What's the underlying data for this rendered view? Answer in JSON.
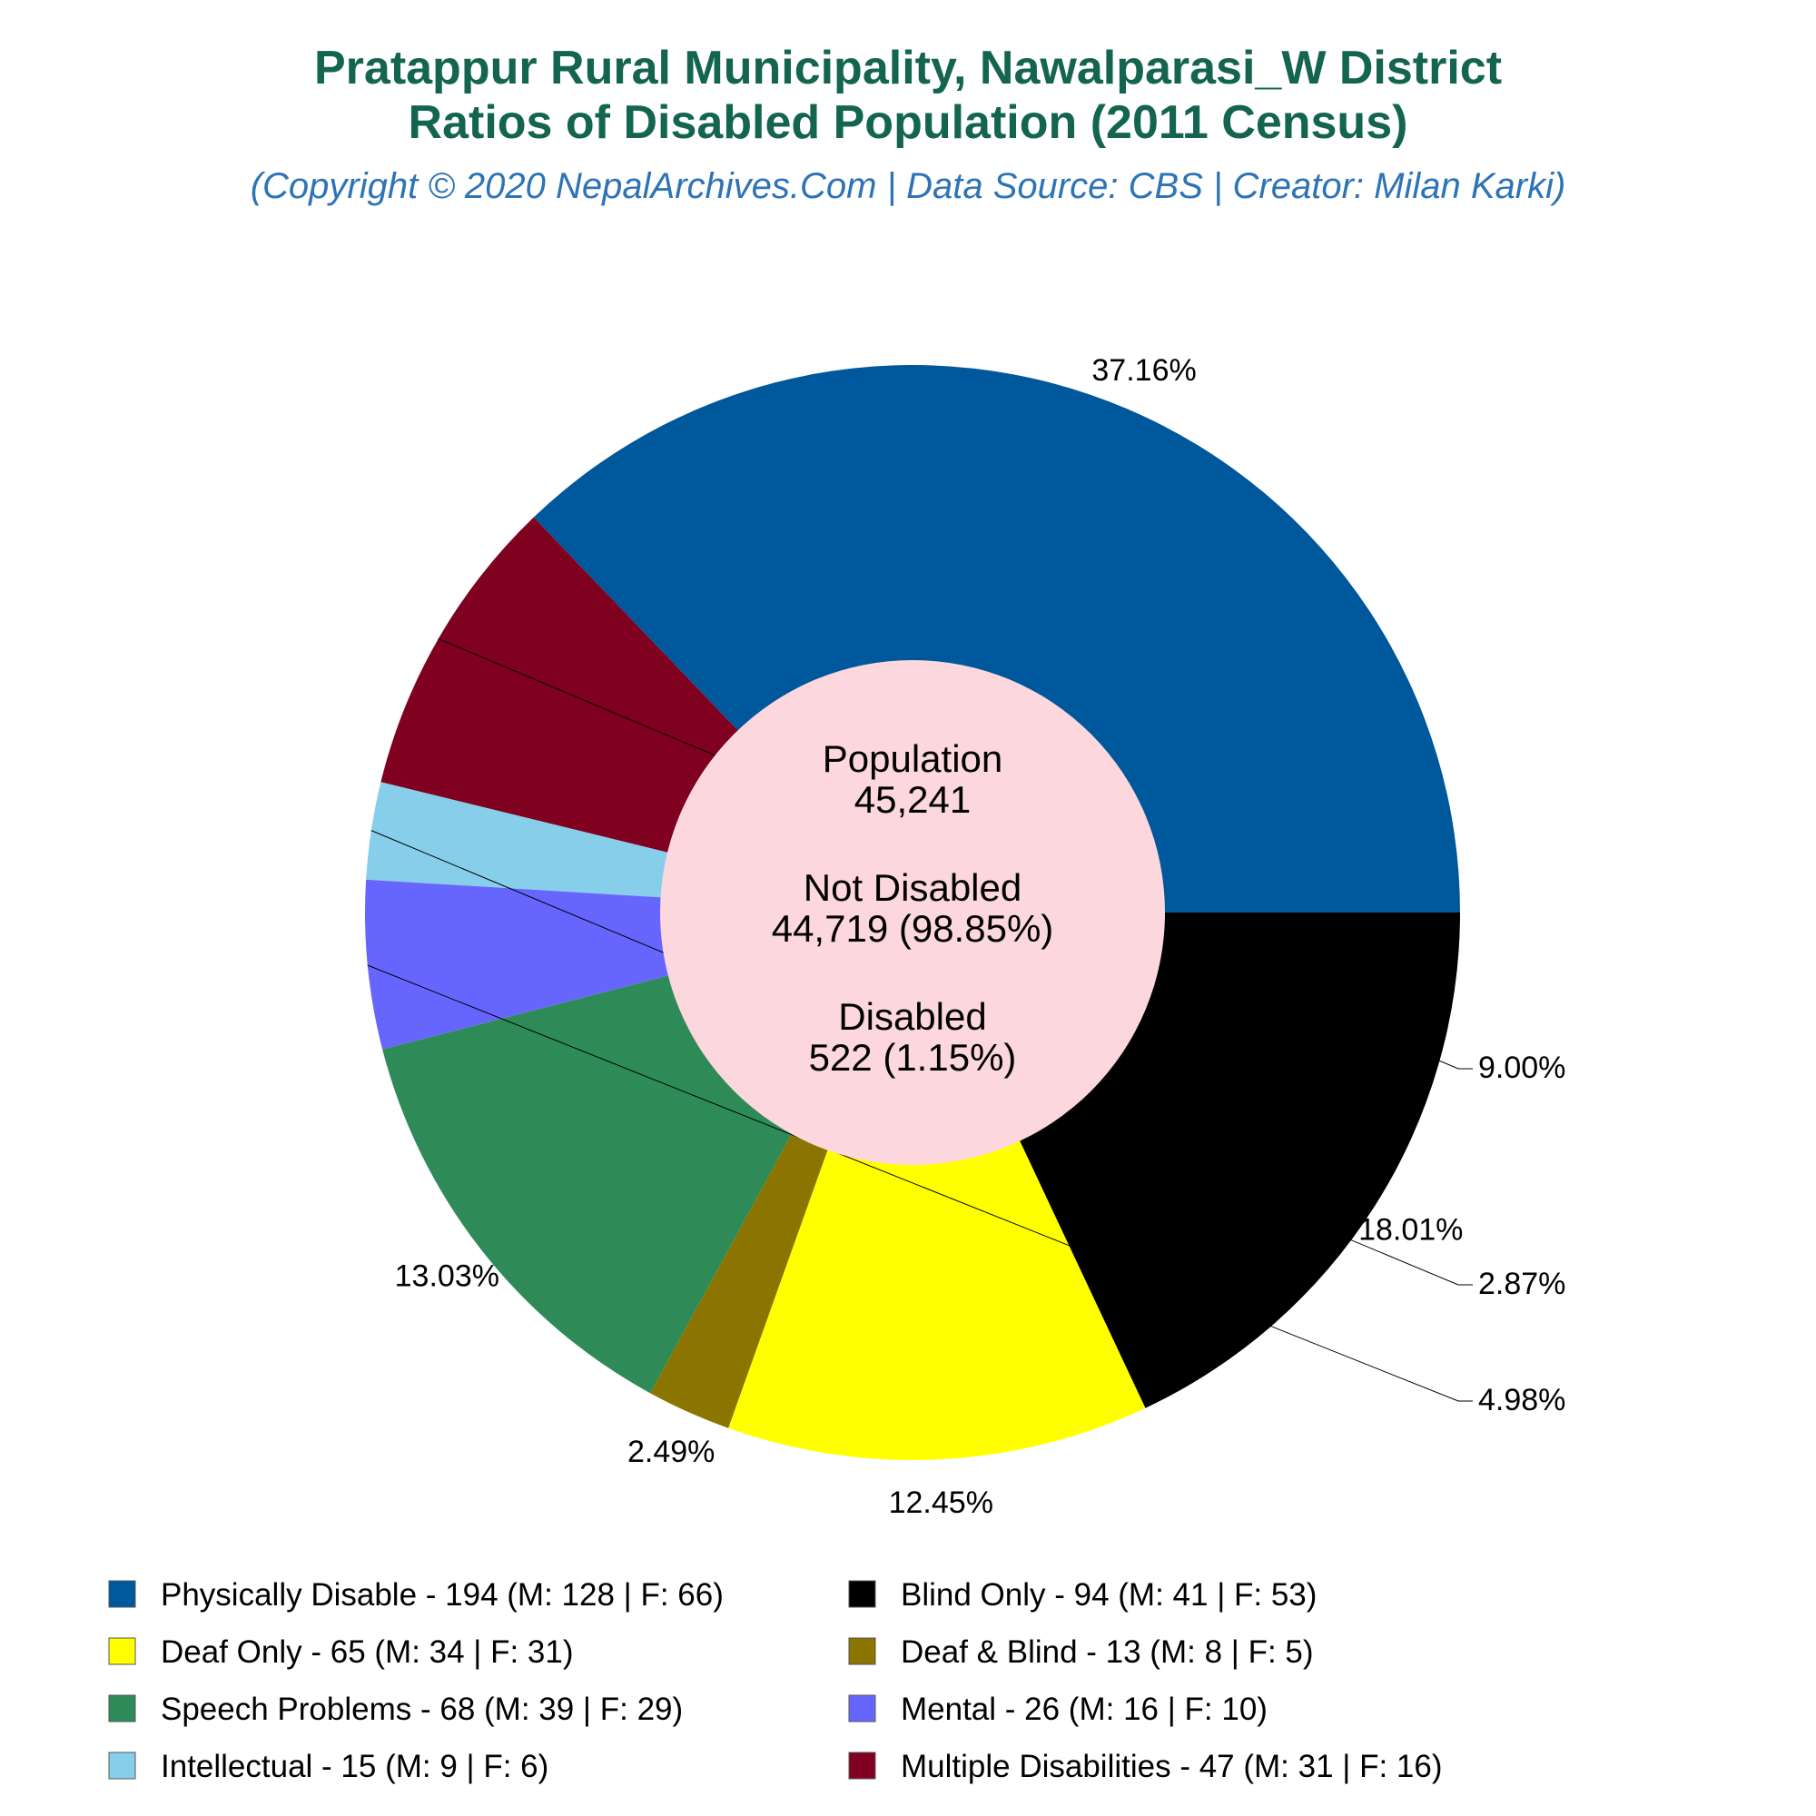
{
  "chart_data": {
    "type": "pie",
    "title_line1": "Pratappur Rural Municipality, Nawalparasi_W District",
    "title_line2": "Ratios of Disabled Population (2011 Census)",
    "subtitle": "(Copyright © 2020 NepalArchives.Com | Data Source: CBS | Creator: Milan Karki)",
    "center": {
      "population_label": "Population",
      "population_value": "45,241",
      "not_disabled_label": "Not Disabled",
      "not_disabled_value": "44,719 (98.85%)",
      "disabled_label": "Disabled",
      "disabled_value": "522 (1.15%)"
    },
    "slices": [
      {
        "category": "Physically Disable",
        "value": 194,
        "percent_label": "37.16%",
        "legend": "Physically Disable - 194 (M: 128 | F: 66)",
        "color": "#00589c"
      },
      {
        "category": "Multiple Disabilities",
        "value": 47,
        "percent_label": "9.00%",
        "legend": "Multiple Disabilities - 47 (M: 31 | F: 16)",
        "color": "#800020"
      },
      {
        "category": "Intellectual",
        "value": 15,
        "percent_label": "2.87%",
        "legend": "Intellectual - 15 (M: 9 | F: 6)",
        "color": "#87ceeb"
      },
      {
        "category": "Mental",
        "value": 26,
        "percent_label": "4.98%",
        "legend": "Mental - 26 (M: 16 | F: 10)",
        "color": "#6666ff"
      },
      {
        "category": "Speech Problems",
        "value": 68,
        "percent_label": "13.03%",
        "legend": "Speech Problems - 68 (M: 39 | F: 29)",
        "color": "#2e8b57"
      },
      {
        "category": "Deaf & Blind",
        "value": 13,
        "percent_label": "2.49%",
        "legend": "Deaf & Blind - 13 (M: 8 | F: 5)",
        "color": "#8b7500"
      },
      {
        "category": "Deaf Only",
        "value": 65,
        "percent_label": "12.45%",
        "legend": "Deaf Only - 65 (M: 34 | F: 31)",
        "color": "#ffff00"
      },
      {
        "category": "Blind Only",
        "value": 94,
        "percent_label": "18.01%",
        "legend": "Blind Only - 94 (M: 41 | F: 53)",
        "color": "#000000"
      }
    ],
    "legend_order": [
      "Physically Disable",
      "Blind Only",
      "Deaf Only",
      "Deaf & Blind",
      "Speech Problems",
      "Mental",
      "Intellectual",
      "Multiple Disabilities"
    ],
    "center_color": "#fcd7de"
  }
}
